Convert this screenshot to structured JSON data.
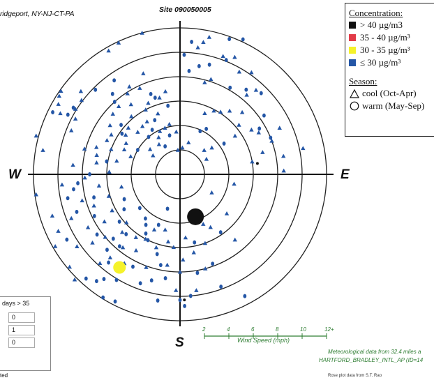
{
  "chart_data": {
    "type": "scatter",
    "subtype": "pollution-rose",
    "title": "Site 090050005",
    "location": "ridgeport, NY-NJ-CT-PA",
    "directions": {
      "north": "",
      "west": "W",
      "east": "E",
      "south": "S"
    },
    "wind_speed_scale": {
      "label": "Wind Speed (mph)",
      "ticks": [
        "2",
        "4",
        "6",
        "8",
        "10",
        "12+"
      ],
      "rings": [
        2,
        4,
        6,
        8,
        10,
        12
      ]
    },
    "legend": {
      "concentration_header": "Concentration:",
      "concentration": [
        {
          "label": "> 40 µg/m3",
          "color": "#111111"
        },
        {
          "label": "35 - 40 µg/m³",
          "color": "#e23b48"
        },
        {
          "label": "30 - 35 µg/m³",
          "color": "#f5f22a"
        },
        {
          "label": "≤ 30 µg/m³",
          "color": "#2456a6"
        }
      ],
      "season_header": "Season:",
      "season": [
        {
          "label": "cool (Oct-Apr)",
          "symbol": "triangle"
        },
        {
          "label": "warm (May-Sep)",
          "symbol": "circle"
        }
      ]
    },
    "highlight_points": [
      {
        "dir_deg": 160,
        "speed": 3.7,
        "category": "> 40 µg/m3",
        "season": "warm"
      },
      {
        "dir_deg": 213,
        "speed": 9.1,
        "category": "30 - 35 µg/m³",
        "season": "warm"
      }
    ],
    "series": [
      {
        "name": "cool (Oct-Apr)",
        "points": [
          [
            300,
            11.5
          ],
          [
            303,
            11.8
          ],
          [
            305,
            11.9
          ],
          [
            297,
            11.0
          ],
          [
            292,
            9.6
          ],
          [
            298,
            9.7
          ],
          [
            307,
            10.1
          ],
          [
            310,
            10.6
          ],
          [
            302,
            10.1
          ],
          [
            285,
            12.2
          ],
          [
            280,
            11.4
          ],
          [
            295,
            6.6
          ],
          [
            300,
            6.5
          ],
          [
            290,
            6.0
          ],
          [
            305,
            7.0
          ],
          [
            312,
            7.4
          ],
          [
            318,
            7.5
          ],
          [
            320,
            6.2
          ],
          [
            325,
            7.0
          ],
          [
            327,
            7.9
          ],
          [
            330,
            8.3
          ],
          [
            335,
            7.8
          ],
          [
            340,
            8.8
          ],
          [
            332,
            6.0
          ],
          [
            336,
            6.4
          ],
          [
            328,
            5.1
          ],
          [
            322,
            5.0
          ],
          [
            315,
            4.9
          ],
          [
            340,
            5.3
          ],
          [
            345,
            6.5
          ],
          [
            350,
            6.9
          ],
          [
            348,
            4.2
          ],
          [
            342,
            4.0
          ],
          [
            355,
            3.5
          ],
          [
            335,
            3.9
          ],
          [
            325,
            3.0
          ],
          [
            330,
            3.5
          ],
          [
            305,
            2.7
          ],
          [
            310,
            3.2
          ],
          [
            290,
            4.3
          ],
          [
            294,
            5.0
          ],
          [
            300,
            5.1
          ],
          [
            306,
            5.5
          ],
          [
            312,
            5.7
          ],
          [
            285,
            8.1
          ],
          [
            288,
            7.2
          ],
          [
            283,
            7.0
          ],
          [
            330,
            11.7
          ],
          [
            335,
            11.9
          ],
          [
            345,
            12.0
          ],
          [
            8,
            10.5
          ],
          [
            10,
            11.0
          ],
          [
            12,
            11.5
          ],
          [
            20,
            10.3
          ],
          [
            25,
            10.6
          ],
          [
            30,
            9.7
          ],
          [
            35,
            10.2
          ],
          [
            40,
            8.5
          ],
          [
            42,
            9.3
          ],
          [
            45,
            7.2
          ],
          [
            15,
            7.8
          ],
          [
            18,
            8.2
          ],
          [
            22,
            5.4
          ],
          [
            28,
            5.9
          ],
          [
            33,
            6.1
          ],
          [
            38,
            6.6
          ],
          [
            50,
            6.3
          ],
          [
            55,
            5.5
          ],
          [
            58,
            6.9
          ],
          [
            62,
            7.3
          ],
          [
            65,
            9.0
          ],
          [
            70,
            8.0
          ],
          [
            75,
            7.0
          ],
          [
            80,
            6.0
          ],
          [
            80,
            8.6
          ],
          [
            78,
            10.3
          ],
          [
            88,
            8.5
          ],
          [
            50,
            3.4
          ],
          [
            45,
            2.8
          ],
          [
            60,
            2.5
          ],
          [
            5,
            2.2
          ],
          [
            15,
            2.7
          ],
          [
            355,
            2.0
          ],
          [
            100,
            4.5
          ],
          [
            120,
            3.0
          ],
          [
            130,
            5.0
          ],
          [
            140,
            7.0
          ],
          [
            150,
            5.0
          ],
          [
            155,
            4.5
          ],
          [
            160,
            6.0
          ],
          [
            165,
            8.0
          ],
          [
            170,
            6.5
          ],
          [
            175,
            5.2
          ],
          [
            178,
            7.0
          ],
          [
            180,
            8.0
          ],
          [
            182,
            9.5
          ],
          [
            172,
            9.6
          ],
          [
            185,
            6.0
          ],
          [
            188,
            7.5
          ],
          [
            190,
            5.6
          ],
          [
            195,
            4.7
          ],
          [
            198,
            6.3
          ],
          [
            200,
            8.1
          ],
          [
            205,
            5.0
          ],
          [
            208,
            6.0
          ],
          [
            210,
            7.2
          ],
          [
            212,
            8.6
          ],
          [
            215,
            6.3
          ],
          [
            218,
            7.6
          ],
          [
            220,
            8.9
          ],
          [
            222,
            9.8
          ],
          [
            225,
            6.7
          ],
          [
            228,
            5.9
          ],
          [
            230,
            8.0
          ],
          [
            232,
            9.1
          ],
          [
            235,
            10.3
          ],
          [
            238,
            7.3
          ],
          [
            240,
            8.7
          ],
          [
            242,
            6.3
          ],
          [
            245,
            11.0
          ],
          [
            248,
            9.6
          ],
          [
            250,
            7.5
          ],
          [
            253,
            6.1
          ],
          [
            255,
            8.3
          ],
          [
            258,
            4.9
          ],
          [
            262,
            6.7
          ],
          [
            265,
            9.7
          ],
          [
            268,
            7.8
          ],
          [
            272,
            5.8
          ],
          [
            275,
            8.8
          ],
          [
            278,
            6.9
          ],
          [
            282,
            5.3
          ],
          [
            262,
            11.9
          ],
          [
            252,
            11.0
          ],
          [
            240,
            11.8
          ],
          [
            230,
            11.8
          ],
          [
            225,
            12.2
          ]
        ]
      },
      {
        "name": "warm (May-Sep)",
        "points": [
          [
            298,
            10.4
          ],
          [
            296,
            11.6
          ],
          [
            302,
            10.3
          ],
          [
            315,
            9.8
          ],
          [
            320,
            8.6
          ],
          [
            318,
            8.0
          ],
          [
            325,
            9.4
          ],
          [
            310,
            6.3
          ],
          [
            340,
            7.0
          ],
          [
            350,
            5.7
          ],
          [
            342,
            6.6
          ],
          [
            335,
            4.9
          ],
          [
            328,
            4.3
          ],
          [
            320,
            4.0
          ],
          [
            345,
            3.3
          ],
          [
            300,
            4.0
          ],
          [
            305,
            5.8
          ],
          [
            332,
            2.6
          ],
          [
            10,
            9.0
          ],
          [
            5,
            8.5
          ],
          [
            2,
            9.8
          ],
          [
            5,
            10.9
          ],
          [
            15,
            9.3
          ],
          [
            22,
            10.1
          ],
          [
            20,
            11.8
          ],
          [
            25,
            12.2
          ],
          [
            30,
            8.2
          ],
          [
            38,
            8.8
          ],
          [
            45,
            9.4
          ],
          [
            55,
            8.4
          ],
          [
            60,
            7.5
          ],
          [
            68,
            8.0
          ],
          [
            30,
            4.3
          ],
          [
            25,
            3.9
          ],
          [
            55,
            4.4
          ],
          [
            200,
            3.0
          ],
          [
            203,
            4.5
          ],
          [
            206,
            6.0
          ],
          [
            210,
            5.6
          ],
          [
            214,
            5.0
          ],
          [
            218,
            4.6
          ],
          [
            222,
            6.6
          ],
          [
            226,
            7.6
          ],
          [
            220,
            7.7
          ],
          [
            196,
            6.8
          ],
          [
            192,
            7.6
          ],
          [
            188,
            8.6
          ],
          [
            180,
            10.3
          ],
          [
            178,
            10.8
          ],
          [
            175,
            10.0
          ],
          [
            190,
            10.5
          ],
          [
            195,
            9.0
          ],
          [
            200,
            9.5
          ],
          [
            207,
            8.5
          ],
          [
            211,
            10.1
          ],
          [
            216,
            10.6
          ],
          [
            219,
            9.3
          ],
          [
            224,
            8.6
          ],
          [
            234,
            8.4
          ],
          [
            244,
            7.8
          ],
          [
            255,
            7.3
          ],
          [
            262,
            8.8
          ],
          [
            270,
            7.4
          ],
          [
            280,
            6.1
          ],
          [
            246,
            5.0
          ],
          [
            230,
            4.3
          ],
          [
            218,
            11.1
          ],
          [
            222,
            11.5
          ],
          [
            212,
            11.9
          ],
          [
            207,
            11.7
          ],
          [
            170,
            8.2
          ],
          [
            160,
            9.8
          ],
          [
            152,
            11.3
          ],
          [
            145,
            5.8
          ],
          [
            160,
            7.8
          ],
          [
            168,
            5.7
          ],
          [
            240,
            10.7
          ],
          [
            250,
            9.0
          ],
          [
            258,
            9.4
          ],
          [
            265,
            8.4
          ],
          [
            232,
            6.3
          ],
          [
            238,
            5.4
          ]
        ]
      }
    ]
  },
  "counts_panel": {
    "header": "days > 35",
    "values": [
      "0",
      "1",
      "0"
    ]
  },
  "met_note": {
    "line1": "Meteorological data from 32.4 miles a",
    "line2": "HARTFORD_BRADLEY_INTL_AP (ID=14"
  },
  "footnote": "ted",
  "credit": "Rose plot data from S.T. Rao"
}
